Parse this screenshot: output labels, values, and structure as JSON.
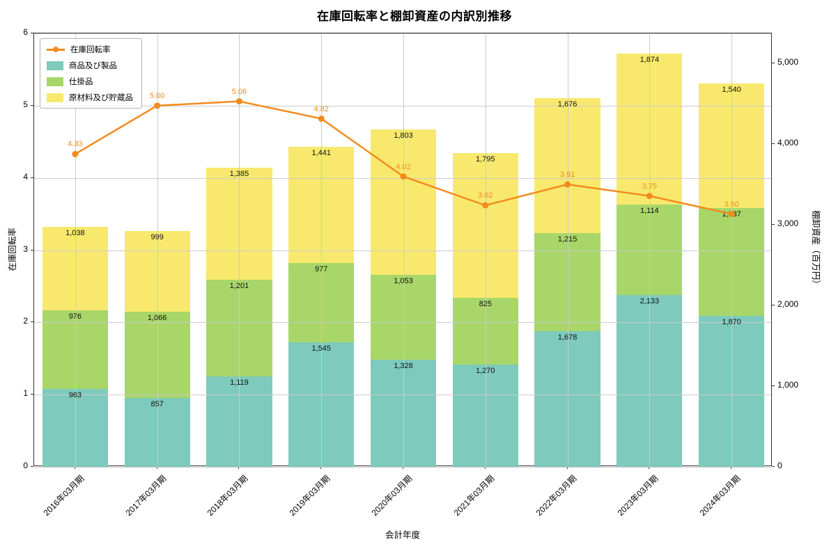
{
  "title": "在庫回転率と棚卸資産の内訳別推移",
  "chart_data": {
    "type": "bar",
    "subtype": "stacked-bar-with-line",
    "categories": [
      "2016年03月期",
      "2017年03月期",
      "2018年03月期",
      "2019年03月期",
      "2020年03月期",
      "2021年03月期",
      "2022年03月期",
      "2023年03月期",
      "2024年03月期"
    ],
    "series": [
      {
        "name": "商品及び製品",
        "type": "bar",
        "color": "#7ecabc",
        "values": [
          963,
          857,
          1119,
          1545,
          1328,
          1270,
          1678,
          2133,
          1870
        ]
      },
      {
        "name": "仕掛品",
        "type": "bar",
        "color": "#a8d669",
        "values": [
          976,
          1066,
          1201,
          977,
          1053,
          825,
          1215,
          1114,
          1337
        ]
      },
      {
        "name": "原材料及び貯蔵品",
        "type": "bar",
        "color": "#f8e96e",
        "values": [
          1038,
          999,
          1385,
          1441,
          1803,
          1795,
          1676,
          1874,
          1540
        ]
      },
      {
        "name": "在庫回転率",
        "type": "line",
        "color": "#f28b1d",
        "values": [
          4.33,
          5.0,
          5.06,
          4.82,
          4.02,
          3.62,
          3.91,
          3.75,
          3.5
        ]
      }
    ],
    "xlabel": "会計年度",
    "ylabel_left": "在庫回転率",
    "ylabel_right": "棚卸資産（百万円）",
    "ylim_left": [
      0,
      6
    ],
    "ylim_right": [
      0,
      5370
    ],
    "yticks_left": [
      0,
      1,
      2,
      3,
      4,
      5,
      6
    ],
    "yticks_right": [
      0,
      1000,
      2000,
      3000,
      4000,
      5000
    ],
    "grid": true,
    "legend_position": "upper-left"
  }
}
